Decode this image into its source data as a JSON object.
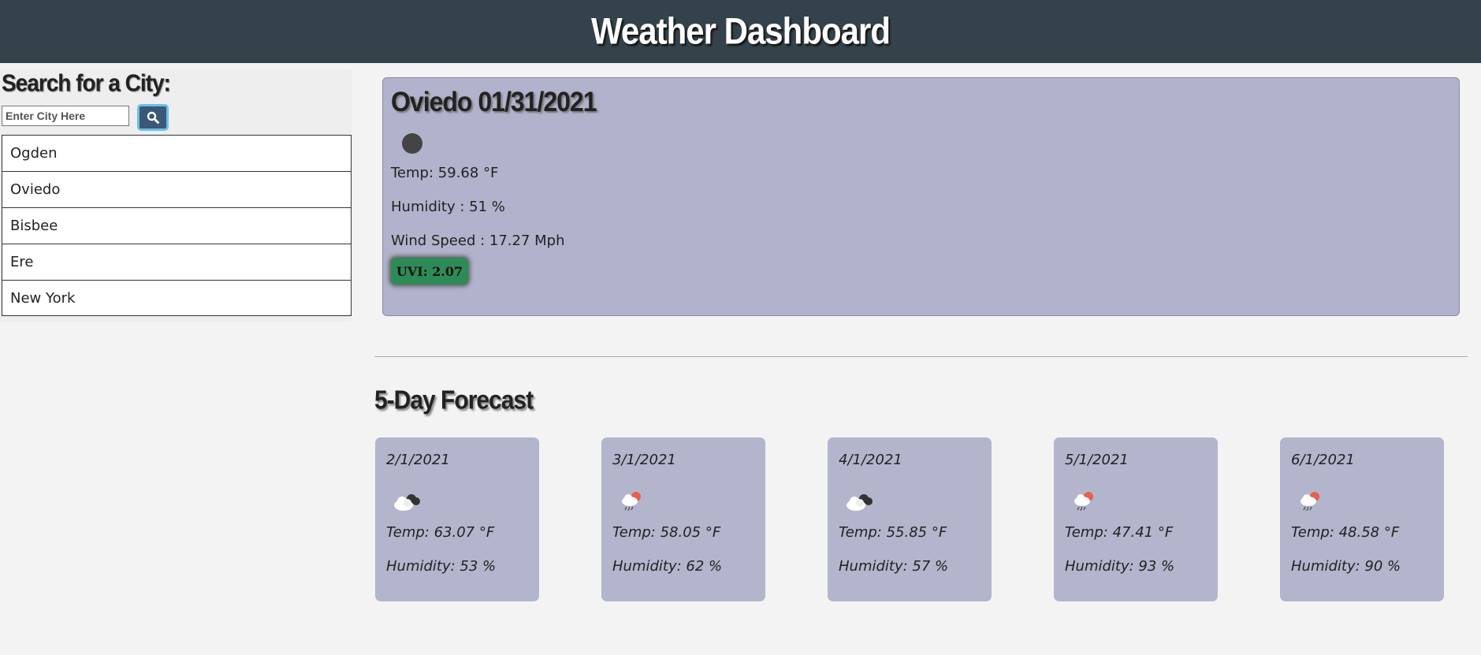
{
  "header": {
    "title": "Weather Dashboard"
  },
  "sidebar": {
    "heading": "Search for a City:",
    "search": {
      "placeholder": "Enter City Here",
      "value": ""
    },
    "search_icon": "search-icon",
    "history": [
      "Ogden",
      "Oviedo",
      "Bisbee",
      "Ere",
      "New York"
    ]
  },
  "current": {
    "title": "Oviedo 01/31/2021",
    "icon": "moon-icon",
    "temp": "Temp: 59.68 °F",
    "humidity": "Humidity : 51 %",
    "wind": "Wind Speed : 17.27 Mph",
    "uvi": "UVI: 2.07",
    "uvi_color": "#2e8b57"
  },
  "forecast": {
    "title": "5-Day Forecast",
    "days": [
      {
        "date": "2/1/2021",
        "icon": "cloudy-night-icon",
        "temp": "Temp: 63.07 °F",
        "humidity": "Humidity: 53 %"
      },
      {
        "date": "3/1/2021",
        "icon": "rain-sun-icon",
        "temp": "Temp: 58.05 °F",
        "humidity": "Humidity: 62 %"
      },
      {
        "date": "4/1/2021",
        "icon": "cloudy-night-icon",
        "temp": "Temp: 55.85 °F",
        "humidity": "Humidity: 57 %"
      },
      {
        "date": "5/1/2021",
        "icon": "rain-sun-icon",
        "temp": "Temp: 47.41 °F",
        "humidity": "Humidity: 93 %"
      },
      {
        "date": "6/1/2021",
        "icon": "rain-sun-icon",
        "temp": "Temp: 48.58 °F",
        "humidity": "Humidity: 90 %"
      }
    ]
  },
  "colors": {
    "header": "#34434b",
    "card": "#b3b5cd",
    "search_button": "#3a5877"
  }
}
